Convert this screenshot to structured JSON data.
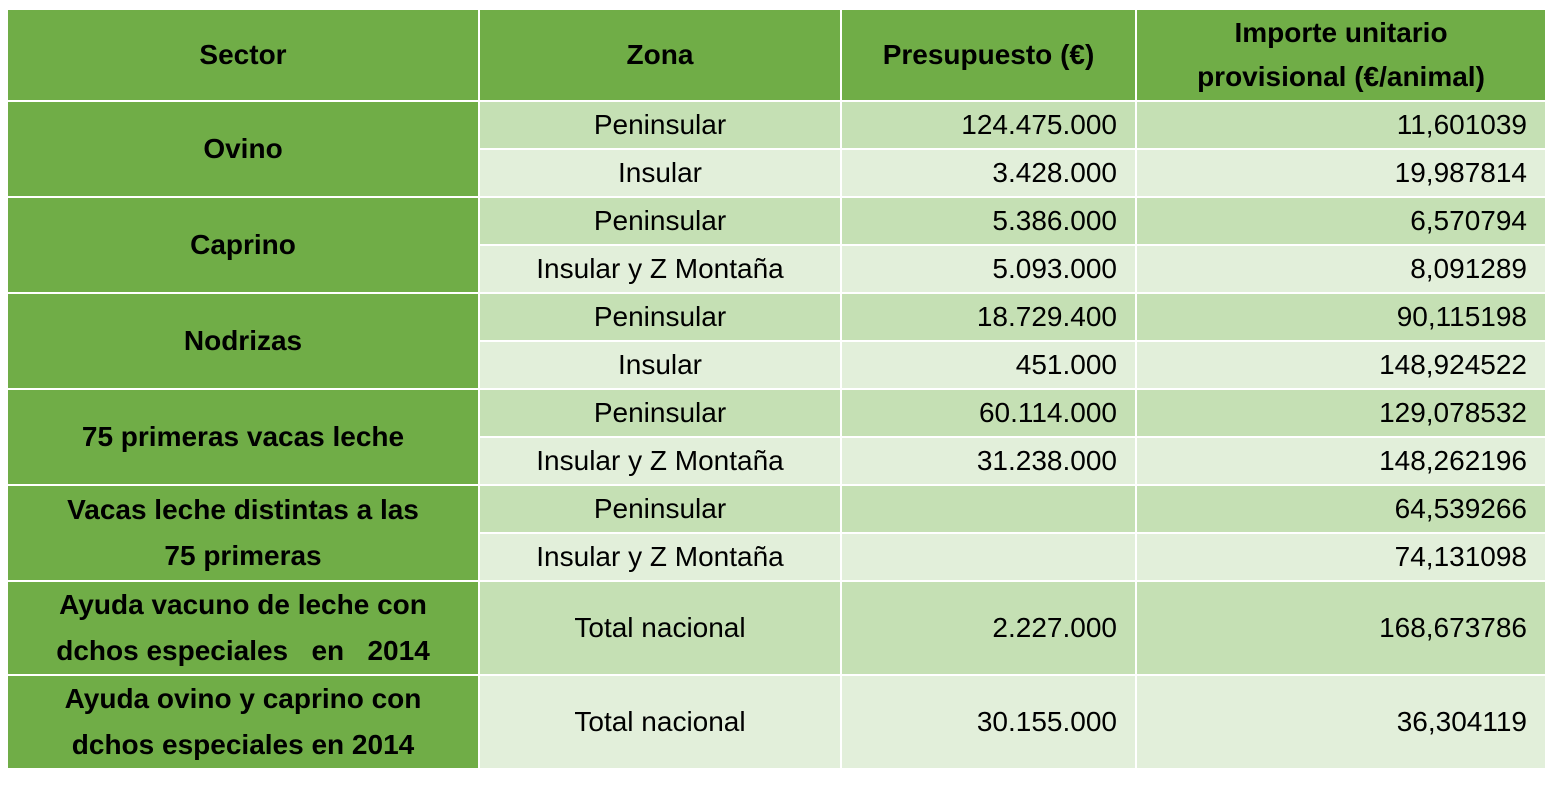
{
  "header": [
    "Sector",
    "Zona",
    "Presupuesto (€)",
    [
      "Importe unitario",
      "provisional (€/animal)"
    ]
  ],
  "groups": [
    {
      "sector": [
        "Ovino"
      ],
      "rows": [
        [
          "Peninsular",
          "124.475.000",
          "11,601039"
        ],
        [
          "Insular",
          "3.428.000",
          "19,987814"
        ]
      ]
    },
    {
      "sector": [
        "Caprino"
      ],
      "rows": [
        [
          "Peninsular",
          "5.386.000",
          "6,570794"
        ],
        [
          "Insular y Z Montaña",
          "5.093.000",
          "8,091289"
        ]
      ]
    },
    {
      "sector": [
        "Nodrizas"
      ],
      "rows": [
        [
          "Peninsular",
          "18.729.400",
          "90,115198"
        ],
        [
          "Insular",
          "451.000",
          "148,924522"
        ]
      ]
    },
    {
      "sector": [
        "75 primeras vacas leche"
      ],
      "rows": [
        [
          "Peninsular",
          "60.114.000",
          "129,078532"
        ],
        [
          "Insular y Z Montaña",
          "31.238.000",
          "148,262196"
        ]
      ]
    },
    {
      "sector": [
        "Vacas leche distintas a las",
        "75 primeras"
      ],
      "rows": [
        [
          "Peninsular",
          null,
          "64,539266"
        ],
        [
          "Insular y Z Montaña",
          null,
          "74,131098"
        ]
      ]
    },
    {
      "sector": [
        "Ayuda vacuno de leche con",
        "dchos especiales   en   2014"
      ],
      "rows": [
        [
          "Total nacional",
          "2.227.000",
          "168,673786"
        ]
      ]
    },
    {
      "sector": [
        "Ayuda ovino y caprino con",
        "dchos especiales en 2014"
      ],
      "rows": [
        [
          "Total nacional",
          "30.155.000",
          "36,304119"
        ]
      ]
    }
  ]
}
